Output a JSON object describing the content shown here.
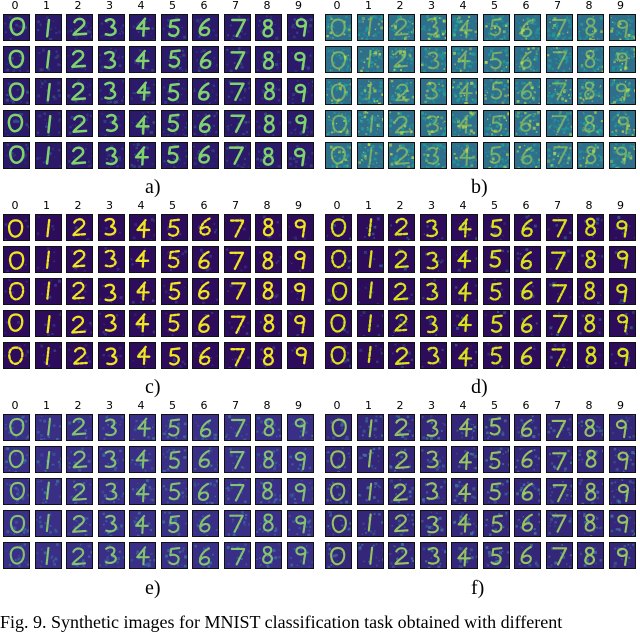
{
  "column_labels": [
    "0",
    "1",
    "2",
    "3",
    "4",
    "5",
    "6",
    "7",
    "8",
    "9"
  ],
  "panels": [
    {
      "id": "a",
      "label": "a)",
      "style": "clear",
      "bg": "#2b1a6a",
      "fg": "#7fd36b",
      "noise": "#3a4c8a"
    },
    {
      "id": "b",
      "label": "b)",
      "style": "noisy",
      "bg": "#2f6f8c",
      "fg": "#b7dc4a",
      "noise": "#1fa09a"
    },
    {
      "id": "c",
      "label": "c)",
      "style": "sparse",
      "bg": "#2d0c5c",
      "fg": "#f0e51f",
      "noise": "#3b3f8f"
    },
    {
      "id": "d",
      "label": "d)",
      "style": "sparse",
      "bg": "#2d0c5c",
      "fg": "#d8e219",
      "noise": "#2f5f8f"
    },
    {
      "id": "e",
      "label": "e)",
      "style": "soft",
      "bg": "#3a2f86",
      "fg": "#8fdc6a",
      "noise": "#3d6fa1"
    },
    {
      "id": "f",
      "label": "f)",
      "style": "soft",
      "bg": "#34277a",
      "fg": "#a4de5b",
      "noise": "#3f78a3"
    }
  ],
  "caption": "Fig. 9.  Synthetic images for MNIST classification task obtained with different"
}
